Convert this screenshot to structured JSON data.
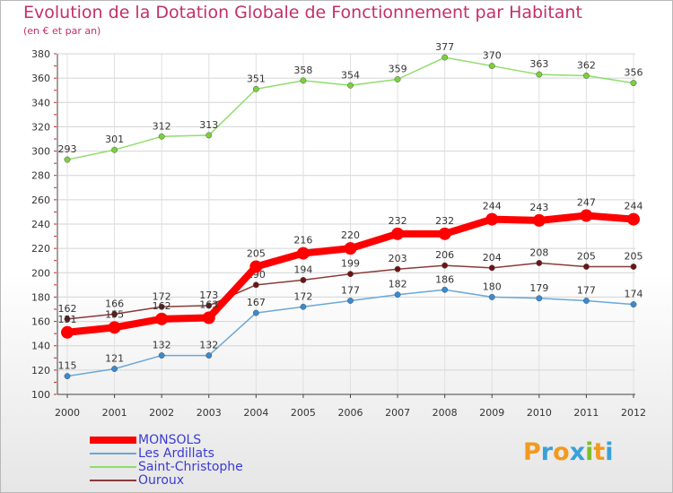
{
  "header": {
    "title": "Evolution de la Dotation Globale de Fonctionnement par Habitant",
    "subtitle": "(en € et par an)"
  },
  "logo": {
    "text": "Proxiti",
    "colors": [
      "#f29a1e",
      "#3aa0d8",
      "#f29a1e",
      "#3aa0d8",
      "#7bbf2a",
      "#f29a1e",
      "#3aa0d8"
    ]
  },
  "chart_data": {
    "type": "line",
    "title": "Evolution de la Dotation Globale de Fonctionnement par Habitant",
    "subtitle": "(en € et par an)",
    "x": [
      "2000",
      "2001",
      "2002",
      "2003",
      "2004",
      "2005",
      "2006",
      "2007",
      "2008",
      "2009",
      "2010",
      "2011",
      "2012"
    ],
    "ylim": [
      100,
      380
    ],
    "yticks": [
      100,
      120,
      140,
      160,
      180,
      200,
      220,
      240,
      260,
      280,
      300,
      320,
      340,
      360,
      380
    ],
    "grid": "horizontal",
    "legend_position": "bottom-left",
    "series": [
      {
        "name": "Saint-Christophe",
        "color": "#90dc6c",
        "marker": "#7ad03a",
        "values": [
          293,
          301,
          312,
          313,
          351,
          358,
          354,
          359,
          377,
          370,
          363,
          362,
          356
        ],
        "labels": [
          "293",
          "301",
          "312",
          "313",
          "351",
          "358",
          "354",
          "359",
          "377",
          "370",
          "363",
          "362",
          "356"
        ]
      },
      {
        "name": "Ouroux",
        "color": "#8a3a3a",
        "marker": "#6a1515",
        "values": [
          162,
          166,
          172,
          173,
          190,
          194,
          199,
          203,
          206,
          204,
          208,
          205,
          205
        ],
        "labels": [
          "162",
          "166",
          "172",
          "173",
          "190",
          "194",
          "199",
          "203",
          "206",
          "204",
          "208",
          "205",
          "205"
        ]
      },
      {
        "name": "Les Ardillats",
        "color": "#6aa8d8",
        "marker": "#3a8ad0",
        "values": [
          115,
          121,
          132,
          132,
          167,
          172,
          177,
          182,
          186,
          180,
          179,
          177,
          174
        ],
        "labels": [
          "115",
          "121",
          "132",
          "132",
          "167",
          "172",
          "177",
          "182",
          "186",
          "180",
          "179",
          "177",
          "174"
        ]
      },
      {
        "name": "MONSOLS",
        "color": "#ff0000",
        "marker": "#ff0000",
        "values": [
          151,
          155,
          162,
          163,
          205,
          216,
          220,
          232,
          232,
          244,
          243,
          247,
          244
        ],
        "labels": [
          "151",
          "155",
          "162",
          "163",
          "205",
          "216",
          "220",
          "232",
          "232",
          "244",
          "243",
          "247",
          "244"
        ]
      }
    ]
  },
  "legend": {
    "items": [
      {
        "label": "MONSOLS",
        "color": "#ff0000",
        "thickness": 8
      },
      {
        "label": "Les Ardillats",
        "color": "#6aa8d8",
        "thickness": 2
      },
      {
        "label": "Saint-Christophe",
        "color": "#90dc6c",
        "thickness": 2
      },
      {
        "label": "Ouroux",
        "color": "#8a3a3a",
        "thickness": 2
      }
    ]
  }
}
